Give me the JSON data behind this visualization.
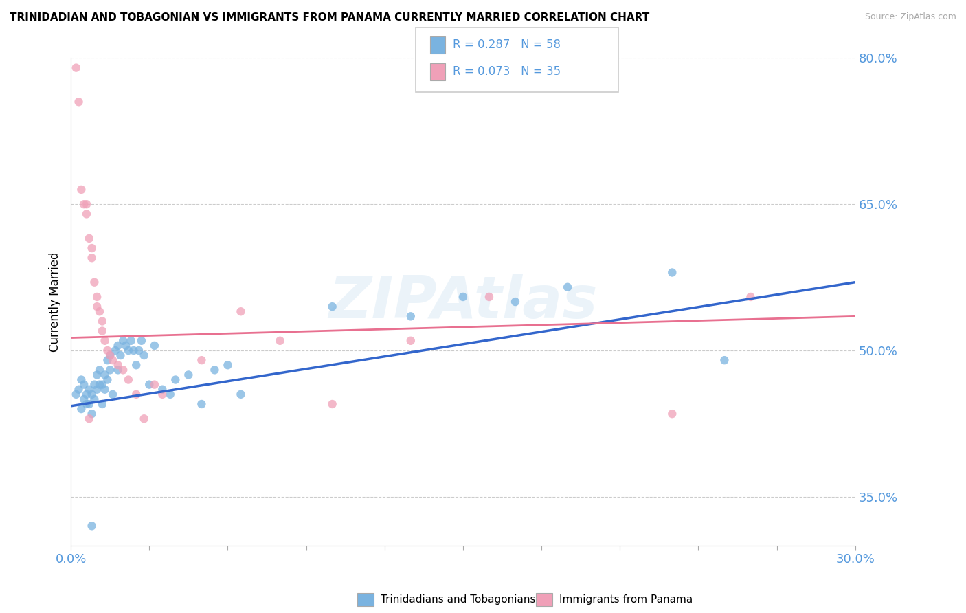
{
  "title": "TRINIDADIAN AND TOBAGONIAN VS IMMIGRANTS FROM PANAMA CURRENTLY MARRIED CORRELATION CHART",
  "source": "Source: ZipAtlas.com",
  "ylabel": "Currently Married",
  "watermark": "ZIPAtlas",
  "legend_entries": [
    {
      "label": "R = 0.287   N = 58",
      "color": "#a8c8f0"
    },
    {
      "label": "R = 0.073   N = 35",
      "color": "#f5b8c8"
    }
  ],
  "legend_bottom": [
    "Trinidadians and Tobagonians",
    "Immigrants from Panama"
  ],
  "blue_color": "#7ab3e0",
  "pink_color": "#f0a0b8",
  "blue_line_color": "#3366cc",
  "pink_line_color": "#e87090",
  "axis_label_color": "#5599dd",
  "background_color": "#ffffff",
  "xmin": 0.0,
  "xmax": 0.3,
  "ymin": 0.3,
  "ymax": 0.8,
  "yticks_visible": [
    0.8,
    0.65,
    0.5,
    0.35
  ],
  "blue_scatter_x": [
    0.002,
    0.003,
    0.004,
    0.004,
    0.005,
    0.005,
    0.006,
    0.006,
    0.007,
    0.007,
    0.008,
    0.008,
    0.009,
    0.009,
    0.01,
    0.01,
    0.011,
    0.011,
    0.012,
    0.012,
    0.013,
    0.013,
    0.014,
    0.014,
    0.015,
    0.015,
    0.016,
    0.017,
    0.018,
    0.018,
    0.019,
    0.02,
    0.021,
    0.022,
    0.023,
    0.024,
    0.025,
    0.026,
    0.027,
    0.028,
    0.03,
    0.032,
    0.035,
    0.038,
    0.04,
    0.045,
    0.05,
    0.055,
    0.06,
    0.065,
    0.1,
    0.13,
    0.15,
    0.17,
    0.19,
    0.23,
    0.25,
    0.008
  ],
  "blue_scatter_y": [
    0.455,
    0.46,
    0.47,
    0.44,
    0.45,
    0.465,
    0.445,
    0.455,
    0.46,
    0.445,
    0.435,
    0.455,
    0.465,
    0.45,
    0.475,
    0.46,
    0.465,
    0.48,
    0.445,
    0.465,
    0.475,
    0.46,
    0.49,
    0.47,
    0.48,
    0.495,
    0.455,
    0.5,
    0.48,
    0.505,
    0.495,
    0.51,
    0.505,
    0.5,
    0.51,
    0.5,
    0.485,
    0.5,
    0.51,
    0.495,
    0.465,
    0.505,
    0.46,
    0.455,
    0.47,
    0.475,
    0.445,
    0.48,
    0.485,
    0.455,
    0.545,
    0.535,
    0.555,
    0.55,
    0.565,
    0.58,
    0.49,
    0.32
  ],
  "pink_scatter_x": [
    0.002,
    0.003,
    0.004,
    0.005,
    0.006,
    0.006,
    0.007,
    0.008,
    0.008,
    0.009,
    0.01,
    0.01,
    0.011,
    0.012,
    0.012,
    0.013,
    0.014,
    0.015,
    0.016,
    0.018,
    0.02,
    0.022,
    0.025,
    0.028,
    0.032,
    0.035,
    0.05,
    0.065,
    0.08,
    0.1,
    0.13,
    0.16,
    0.23,
    0.26,
    0.007
  ],
  "pink_scatter_y": [
    0.79,
    0.755,
    0.665,
    0.65,
    0.65,
    0.64,
    0.615,
    0.595,
    0.605,
    0.57,
    0.555,
    0.545,
    0.54,
    0.53,
    0.52,
    0.51,
    0.5,
    0.495,
    0.49,
    0.485,
    0.48,
    0.47,
    0.455,
    0.43,
    0.465,
    0.455,
    0.49,
    0.54,
    0.51,
    0.445,
    0.51,
    0.555,
    0.435,
    0.555,
    0.43
  ],
  "blue_line_y0": 0.443,
  "blue_line_y1": 0.57,
  "pink_line_y0": 0.513,
  "pink_line_y1": 0.535
}
